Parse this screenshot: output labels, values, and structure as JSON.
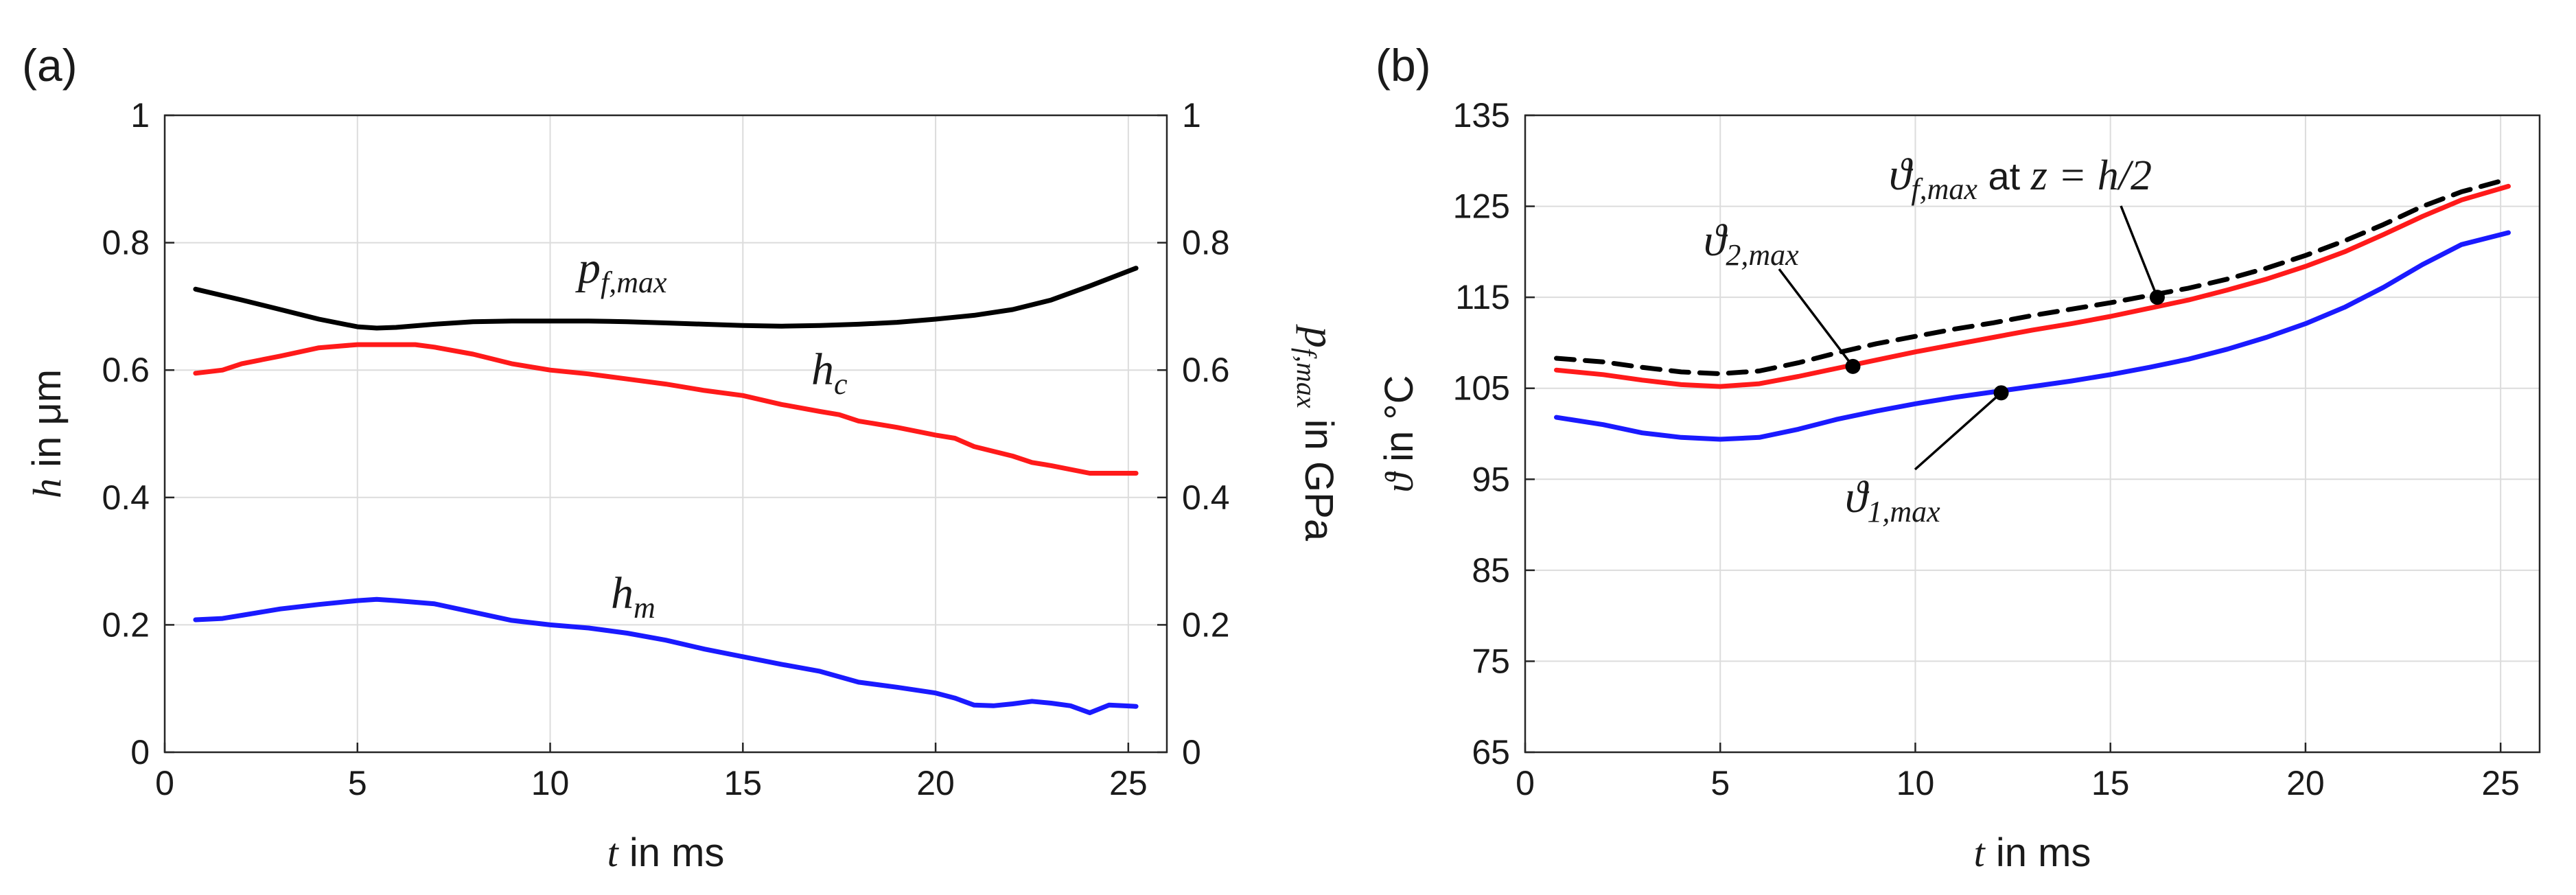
{
  "chart_data": [
    {
      "panel_label": "(a)",
      "type": "line",
      "xlabel_var": "t",
      "xlabel_text": " in ms",
      "ylabel_var": "h",
      "ylabel_text": " in μm",
      "y2label_var": "p",
      "y2label_sub": "f,max",
      "y2label_text": " in GPa",
      "xlim": [
        0,
        26
      ],
      "ylim": [
        0,
        1
      ],
      "y2lim": [
        0,
        1
      ],
      "xticks": [
        "0",
        "5",
        "10",
        "15",
        "20",
        "25"
      ],
      "yticks": [
        "0",
        "0.2",
        "0.4",
        "0.6",
        "0.8",
        "1"
      ],
      "y2ticks": [
        "0",
        "0.2",
        "0.4",
        "0.6",
        "0.8",
        "1"
      ],
      "grid": true,
      "series": [
        {
          "name": "p_f,max",
          "axis": "right",
          "color": "#000000",
          "label_var": "p",
          "label_sub": "f,max",
          "x": [
            0.8,
            2,
            3,
            4,
            5,
            5.5,
            6,
            7,
            8,
            9,
            10,
            11,
            12,
            13,
            14,
            15,
            16,
            17,
            18,
            19,
            20,
            21,
            22,
            23,
            24,
            25.2
          ],
          "y": [
            0.727,
            0.71,
            0.695,
            0.68,
            0.668,
            0.666,
            0.667,
            0.672,
            0.676,
            0.677,
            0.677,
            0.677,
            0.676,
            0.674,
            0.672,
            0.67,
            0.669,
            0.67,
            0.672,
            0.675,
            0.68,
            0.686,
            0.695,
            0.71,
            0.732,
            0.76
          ]
        },
        {
          "name": "h_c",
          "axis": "left",
          "color": "#ff1a1a",
          "label_var": "h",
          "label_sub": "c",
          "x": [
            0.8,
            1.5,
            2,
            3,
            4,
            5,
            6,
            6.5,
            7,
            8,
            9,
            10,
            11,
            12,
            13,
            14,
            15,
            16,
            17,
            17.5,
            18,
            19,
            20,
            20.5,
            21,
            22,
            22.5,
            23,
            24,
            25.2
          ],
          "y": [
            0.595,
            0.6,
            0.61,
            0.622,
            0.635,
            0.64,
            0.64,
            0.64,
            0.636,
            0.625,
            0.61,
            0.6,
            0.594,
            0.586,
            0.578,
            0.568,
            0.56,
            0.546,
            0.535,
            0.53,
            0.52,
            0.51,
            0.498,
            0.493,
            0.48,
            0.465,
            0.455,
            0.45,
            0.438,
            0.438
          ]
        },
        {
          "name": "h_m",
          "axis": "left",
          "color": "#1a1aff",
          "label_var": "h",
          "label_sub": "m",
          "x": [
            0.8,
            1.5,
            2,
            3,
            4,
            5,
            5.5,
            6,
            7,
            8,
            9,
            10,
            11,
            12,
            13,
            14,
            15,
            16,
            17,
            18,
            19,
            20,
            20.5,
            21,
            21.5,
            22,
            22.5,
            23,
            23.5,
            24,
            24.5,
            25.2
          ],
          "y": [
            0.208,
            0.21,
            0.215,
            0.225,
            0.232,
            0.238,
            0.24,
            0.238,
            0.233,
            0.22,
            0.207,
            0.2,
            0.195,
            0.187,
            0.176,
            0.162,
            0.15,
            0.138,
            0.127,
            0.11,
            0.102,
            0.093,
            0.085,
            0.074,
            0.073,
            0.076,
            0.08,
            0.077,
            0.073,
            0.062,
            0.074,
            0.072
          ]
        }
      ]
    },
    {
      "panel_label": "(b)",
      "type": "line",
      "xlabel_var": "t",
      "xlabel_text": " in ms",
      "ylabel_var": "ϑ",
      "ylabel_text": " in °C",
      "xlim": [
        0,
        26
      ],
      "ylim": [
        65,
        135
      ],
      "xticks": [
        "0",
        "5",
        "10",
        "15",
        "20",
        "25"
      ],
      "yticks": [
        "65",
        "75",
        "85",
        "95",
        "105",
        "115",
        "125",
        "135"
      ],
      "grid": true,
      "series": [
        {
          "name": "ϑ_f,max at z = h/2",
          "color": "#000000",
          "dashed": true,
          "x": [
            0.8,
            2,
            3,
            4,
            5,
            6,
            7,
            8,
            9,
            10,
            11,
            12,
            13,
            14,
            15,
            16,
            17,
            18,
            19,
            20,
            21,
            22,
            23,
            24,
            25.2
          ],
          "y": [
            108.3,
            107.9,
            107.3,
            106.8,
            106.6,
            106.9,
            107.8,
            108.9,
            109.9,
            110.7,
            111.5,
            112.2,
            113.0,
            113.7,
            114.4,
            115.2,
            116.0,
            117.0,
            118.2,
            119.6,
            121.2,
            123.0,
            125.0,
            126.6,
            128.0
          ]
        },
        {
          "name": "ϑ_2,max",
          "color": "#ff1a1a",
          "x": [
            0.8,
            2,
            3,
            4,
            5,
            6,
            7,
            8,
            9,
            10,
            11,
            12,
            13,
            14,
            15,
            16,
            17,
            18,
            19,
            20,
            21,
            22,
            23,
            24,
            25.2
          ],
          "y": [
            107.0,
            106.5,
            105.9,
            105.4,
            105.2,
            105.5,
            106.3,
            107.2,
            108.1,
            109.0,
            109.8,
            110.6,
            111.4,
            112.1,
            112.9,
            113.8,
            114.7,
            115.8,
            117.0,
            118.4,
            120.0,
            121.9,
            123.9,
            125.7,
            127.2
          ]
        },
        {
          "name": "ϑ_1,max",
          "color": "#1a1aff",
          "x": [
            0.8,
            2,
            3,
            4,
            5,
            6,
            7,
            8,
            9,
            10,
            11,
            12,
            13,
            14,
            15,
            16,
            17,
            18,
            19,
            20,
            21,
            22,
            23,
            24,
            25.2
          ],
          "y": [
            101.8,
            101.0,
            100.1,
            99.6,
            99.4,
            99.6,
            100.5,
            101.6,
            102.5,
            103.3,
            104.0,
            104.6,
            105.2,
            105.8,
            106.5,
            107.3,
            108.2,
            109.3,
            110.6,
            112.1,
            113.9,
            116.1,
            118.6,
            120.8,
            122.1
          ]
        }
      ],
      "annotations": [
        {
          "label_var": "ϑ",
          "label_sub": "2,max",
          "label_text": "",
          "point": [
            8.4,
            107.4
          ]
        },
        {
          "label_var": "ϑ",
          "label_sub": "1,max",
          "label_text": "",
          "point": [
            12.2,
            104.5
          ]
        },
        {
          "label_var": "ϑ",
          "label_sub": "f,max",
          "label_text": " at ",
          "label_expr": "z = h/2",
          "point": [
            16.2,
            115.0
          ]
        }
      ]
    }
  ]
}
